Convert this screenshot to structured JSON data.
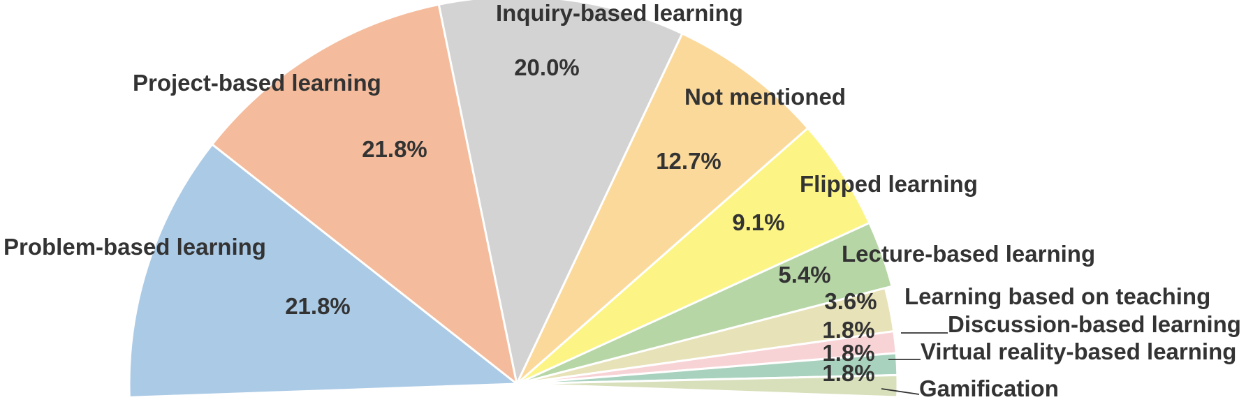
{
  "chart_data": {
    "type": "pie",
    "title": "",
    "slices": [
      {
        "label": "Problem-based learning",
        "value": 21.8,
        "value_label": "21.8%",
        "color": "#abcae6"
      },
      {
        "label": "Project-based learning",
        "value": 21.8,
        "value_label": "21.8%",
        "color": "#f4bc9c"
      },
      {
        "label": "Inquiry-based learning",
        "value": 20.0,
        "value_label": "20.0%",
        "color": "#d3d3d3"
      },
      {
        "label": "Not mentioned",
        "value": 12.7,
        "value_label": "12.7%",
        "color": "#fbd99b"
      },
      {
        "label": "Flipped learning",
        "value": 9.1,
        "value_label": "9.1%",
        "color": "#fcf586"
      },
      {
        "label": "Lecture-based learning",
        "value": 5.4,
        "value_label": "5.4%",
        "color": "#b6d6a6"
      },
      {
        "label": "Learning based on teaching",
        "value": 3.6,
        "value_label": "3.6%",
        "color": "#e7e2b8"
      },
      {
        "label": "Discussion-based learning",
        "value": 1.8,
        "value_label": "1.8%",
        "color": "#f8d3d6"
      },
      {
        "label": "Virtual reality-based learning",
        "value": 1.8,
        "value_label": "1.8%",
        "color": "#a8d2be"
      },
      {
        "label": "Gamification",
        "value": 1.8,
        "value_label": "1.8%",
        "color": "#d8dfbb"
      }
    ]
  }
}
